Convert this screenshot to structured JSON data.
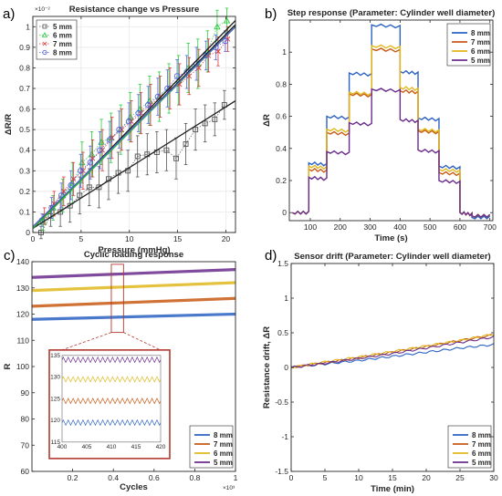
{
  "chart_data": [
    {
      "id": "a",
      "panel_label": "a)",
      "type": "scatter",
      "title": "Resistance change vs Pressure",
      "xlabel": "Pressure (mmHg)",
      "ylabel": "ΔR/R",
      "y_exponent": "×10⁻²",
      "xlim": [
        0,
        21
      ],
      "ylim": [
        0,
        1.05
      ],
      "xticks": [
        0,
        5,
        10,
        15,
        20
      ],
      "yticks": [
        0,
        0.1,
        0.2,
        0.3,
        0.4,
        0.5,
        0.6,
        0.7,
        0.8,
        0.9,
        1
      ],
      "x": [
        1,
        2,
        3,
        4,
        5,
        6,
        7,
        8,
        9,
        10,
        11,
        12,
        13,
        14,
        15,
        16,
        17,
        18,
        19,
        20
      ],
      "series": [
        {
          "name": "5 mm",
          "color": "#555555",
          "marker": "square",
          "values": [
            0.0,
            0.08,
            0.1,
            0.13,
            0.18,
            0.22,
            0.22,
            0.26,
            0.29,
            0.3,
            0.37,
            0.38,
            0.39,
            0.4,
            0.36,
            0.43,
            0.5,
            0.53,
            0.55,
            0.62
          ],
          "errors": [
            0.03,
            0.05,
            0.07,
            0.08,
            0.09,
            0.09,
            0.1,
            0.1,
            0.1,
            0.1,
            0.1,
            0.1,
            0.1,
            0.1,
            0.1,
            0.1,
            0.1,
            0.09,
            0.08,
            0.07
          ]
        },
        {
          "name": "6 mm",
          "color": "#2ecc40",
          "marker": "triangle",
          "values": [
            0.05,
            0.12,
            0.18,
            0.24,
            0.34,
            0.38,
            0.44,
            0.46,
            0.5,
            0.56,
            0.6,
            0.64,
            0.66,
            0.7,
            0.74,
            0.8,
            0.82,
            0.88,
            1.0,
            1.03
          ],
          "errors": [
            0.04,
            0.06,
            0.08,
            0.1,
            0.1,
            0.11,
            0.11,
            0.12,
            0.12,
            0.12,
            0.12,
            0.12,
            0.12,
            0.12,
            0.12,
            0.12,
            0.12,
            0.1,
            0.08,
            0.06
          ]
        },
        {
          "name": "7 mm",
          "color": "#d93a3a",
          "marker": "x",
          "values": [
            0.08,
            0.14,
            0.2,
            0.26,
            0.3,
            0.36,
            0.4,
            0.46,
            0.5,
            0.54,
            0.58,
            0.62,
            0.66,
            0.7,
            0.72,
            0.76,
            0.8,
            0.86,
            0.88,
            0.94
          ],
          "errors": [
            0.04,
            0.06,
            0.07,
            0.08,
            0.09,
            0.09,
            0.1,
            0.1,
            0.1,
            0.1,
            0.1,
            0.1,
            0.1,
            0.1,
            0.1,
            0.09,
            0.09,
            0.08,
            0.07,
            0.06
          ]
        },
        {
          "name": "8 mm",
          "color": "#5566dd",
          "marker": "diamond",
          "values": [
            0.06,
            0.12,
            0.18,
            0.23,
            0.3,
            0.34,
            0.4,
            0.45,
            0.5,
            0.54,
            0.58,
            0.62,
            0.66,
            0.7,
            0.76,
            0.78,
            0.82,
            0.86,
            0.9,
            0.93
          ],
          "errors": [
            0.03,
            0.05,
            0.06,
            0.07,
            0.08,
            0.08,
            0.09,
            0.09,
            0.09,
            0.09,
            0.09,
            0.09,
            0.09,
            0.09,
            0.08,
            0.08,
            0.08,
            0.07,
            0.06,
            0.05
          ]
        }
      ],
      "fit_lines": [
        {
          "series": "5 mm",
          "x": [
            0,
            21
          ],
          "y": [
            0.02,
            0.64
          ]
        },
        {
          "series": "6 mm",
          "x": [
            0,
            21
          ],
          "y": [
            0.02,
            1.03
          ]
        },
        {
          "series": "7 mm",
          "x": [
            0,
            21
          ],
          "y": [
            0.02,
            1.0
          ]
        },
        {
          "series": "8 mm",
          "x": [
            0,
            21
          ],
          "y": [
            0.02,
            1.01
          ]
        }
      ],
      "legend": "top-left"
    },
    {
      "id": "b",
      "panel_label": "b)",
      "type": "line",
      "title": "Step response (Parameter: Cylinder well diameter)",
      "xlabel": "Time (s)",
      "ylabel": "ΔR",
      "xlim": [
        30,
        710
      ],
      "ylim": [
        -0.05,
        1.2
      ],
      "xticks": [
        100,
        200,
        300,
        400,
        500,
        600,
        700
      ],
      "yticks": [
        0,
        0.2,
        0.4,
        0.6,
        0.8,
        1
      ],
      "step_times": [
        40,
        95,
        155,
        230,
        305,
        400,
        460,
        530,
        600,
        640,
        700
      ],
      "series": [
        {
          "name": "8 mm",
          "color": "#2b62c2",
          "levels": [
            0,
            0.31,
            0.6,
            0.87,
            1.17,
            0.88,
            0.59,
            0.29,
            0,
            -0.03
          ]
        },
        {
          "name": "7 mm",
          "color": "#c85a14",
          "levels": [
            0,
            0.27,
            0.5,
            0.74,
            1.02,
            0.76,
            0.51,
            0.25,
            0,
            -0.02
          ]
        },
        {
          "name": "6 mm",
          "color": "#e0b81c",
          "levels": [
            0,
            0.29,
            0.52,
            0.75,
            1.04,
            0.78,
            0.52,
            0.27,
            0,
            -0.02
          ]
        },
        {
          "name": "5 mm",
          "color": "#6a2c8c",
          "levels": [
            0,
            0.22,
            0.38,
            0.56,
            0.77,
            0.58,
            0.39,
            0.2,
            0,
            -0.02
          ]
        }
      ],
      "legend": "top-right"
    },
    {
      "id": "c",
      "panel_label": "c)",
      "type": "line",
      "title": "Cyclic loading response",
      "xlabel": "Cycles",
      "ylabel": "R",
      "x_exponent": "×10³",
      "xlim": [
        0,
        1
      ],
      "ylim": [
        60,
        140
      ],
      "xticks": [
        0.2,
        0.4,
        0.6,
        0.8,
        1
      ],
      "yticks": [
        60,
        70,
        80,
        90,
        100,
        110,
        120,
        130,
        140
      ],
      "series": [
        {
          "name": "8 mm",
          "color": "#2b62c2",
          "x": [
            0,
            1
          ],
          "values": [
            118,
            120
          ]
        },
        {
          "name": "7 mm",
          "color": "#c85a14",
          "x": [
            0,
            1
          ],
          "values": [
            123,
            126
          ]
        },
        {
          "name": "6 mm",
          "color": "#e0b81c",
          "x": [
            0,
            1
          ],
          "values": [
            129,
            132
          ]
        },
        {
          "name": "5 mm",
          "color": "#6a2c8c",
          "x": [
            0,
            1
          ],
          "values": [
            134,
            137
          ]
        }
      ],
      "highlight_xrange": [
        0.39,
        0.45
      ],
      "inset": {
        "xlim": [
          400,
          420
        ],
        "ylim": [
          115,
          135
        ],
        "xticks": [
          400,
          405,
          410,
          415,
          420
        ],
        "xtick_labels": [
          "400",
          "405",
          "410",
          "415",
          "420"
        ],
        "yticks": [
          115,
          120,
          125,
          130,
          135
        ],
        "series": [
          {
            "name": "8 mm",
            "color": "#2b62c2",
            "mean": 119.5,
            "amp": 0.6
          },
          {
            "name": "7 mm",
            "color": "#c85a14",
            "mean": 124.5,
            "amp": 0.6
          },
          {
            "name": "6 mm",
            "color": "#e0b81c",
            "mean": 129.5,
            "amp": 0.6
          },
          {
            "name": "5 mm",
            "color": "#6a2c8c",
            "mean": 134.0,
            "amp": 0.6
          }
        ]
      },
      "legend": "bottom-right"
    },
    {
      "id": "d",
      "panel_label": "d)",
      "type": "line",
      "title": "Sensor drift (Parameter: Cylinder well diameter)",
      "xlabel": "Time (min)",
      "ylabel": "Resistance drift, ΔR",
      "xlim": [
        0,
        30
      ],
      "ylim": [
        -1.5,
        1.5
      ],
      "xticks": [
        0,
        5,
        10,
        15,
        20,
        25,
        30
      ],
      "yticks": [
        -1.5,
        -1,
        -0.5,
        0,
        0.5,
        1,
        1.5
      ],
      "series": [
        {
          "name": "8 mm",
          "color": "#2b62c2",
          "x": [
            0,
            5,
            10,
            15,
            20,
            25,
            30
          ],
          "values": [
            0,
            0.05,
            0.1,
            0.16,
            0.22,
            0.28,
            0.33
          ]
        },
        {
          "name": "7 mm",
          "color": "#c85a14",
          "x": [
            0,
            5,
            10,
            15,
            20,
            25,
            30
          ],
          "values": [
            0,
            0.07,
            0.14,
            0.22,
            0.3,
            0.39,
            0.47
          ]
        },
        {
          "name": "6 mm",
          "color": "#e0b81c",
          "x": [
            0,
            5,
            10,
            15,
            20,
            25,
            30
          ],
          "values": [
            0,
            0.08,
            0.15,
            0.23,
            0.31,
            0.39,
            0.48
          ]
        },
        {
          "name": "5 mm",
          "color": "#6a2c8c",
          "x": [
            0,
            5,
            10,
            15,
            20,
            25,
            30
          ],
          "values": [
            0,
            0.06,
            0.13,
            0.2,
            0.28,
            0.36,
            0.44
          ]
        }
      ],
      "legend": "bottom-right"
    }
  ]
}
